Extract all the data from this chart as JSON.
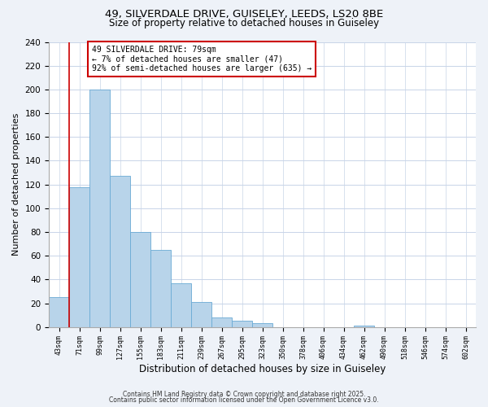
{
  "title_line1": "49, SILVERDALE DRIVE, GUISELEY, LEEDS, LS20 8BE",
  "title_line2": "Size of property relative to detached houses in Guiseley",
  "xlabel": "Distribution of detached houses by size in Guiseley",
  "ylabel": "Number of detached properties",
  "bar_labels": [
    "43sqm",
    "71sqm",
    "99sqm",
    "127sqm",
    "155sqm",
    "183sqm",
    "211sqm",
    "239sqm",
    "267sqm",
    "295sqm",
    "323sqm",
    "350sqm",
    "378sqm",
    "406sqm",
    "434sqm",
    "462sqm",
    "490sqm",
    "518sqm",
    "546sqm",
    "574sqm",
    "602sqm"
  ],
  "bar_values": [
    25,
    118,
    200,
    127,
    80,
    65,
    37,
    21,
    8,
    5,
    3,
    0,
    0,
    0,
    0,
    1,
    0,
    0,
    0,
    0,
    0
  ],
  "bar_color": "#b8d4ea",
  "bar_edge_color": "#6aaad4",
  "ylim": [
    0,
    240
  ],
  "yticks": [
    0,
    20,
    40,
    60,
    80,
    100,
    120,
    140,
    160,
    180,
    200,
    220,
    240
  ],
  "marker_bin": 1,
  "marker_color": "#cc0000",
  "annotation_title": "49 SILVERDALE DRIVE: 79sqm",
  "annotation_line2": "← 7% of detached houses are smaller (47)",
  "annotation_line3": "92% of semi-detached houses are larger (635) →",
  "footer_line1": "Contains HM Land Registry data © Crown copyright and database right 2025.",
  "footer_line2": "Contains public sector information licensed under the Open Government Licence v3.0.",
  "background_color": "#eef2f8",
  "plot_background": "#ffffff",
  "grid_color": "#c8d4e8"
}
